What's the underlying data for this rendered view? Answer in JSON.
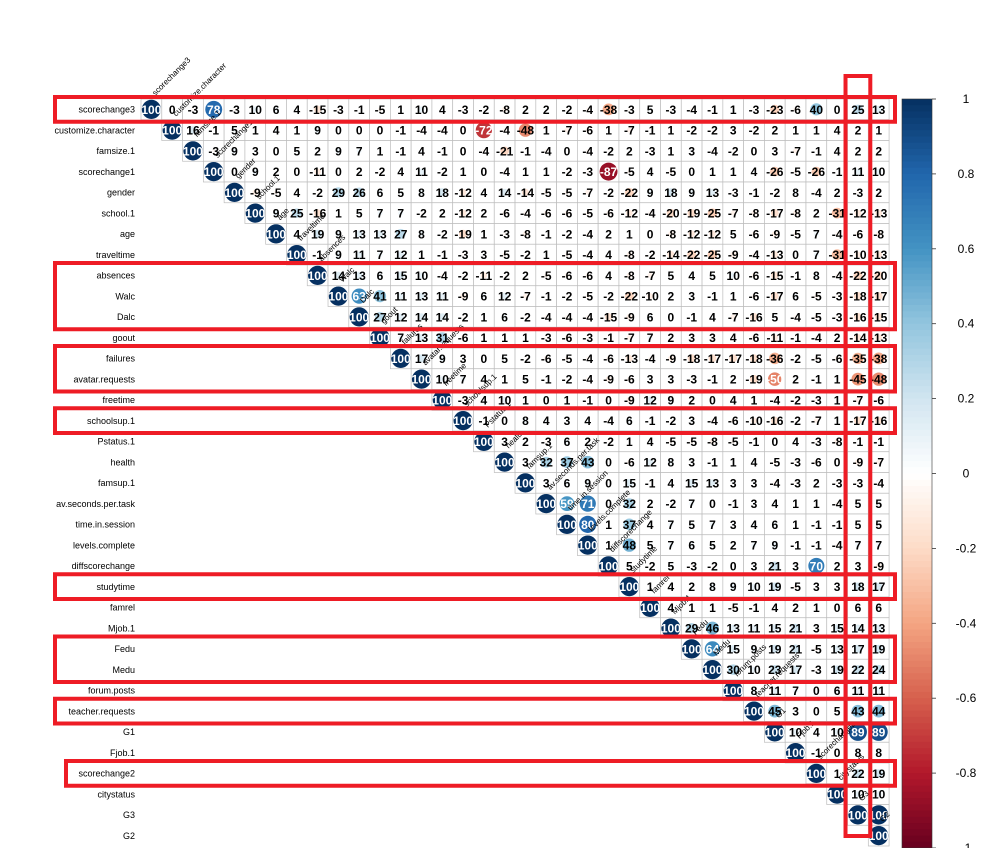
{
  "chart_data": {
    "type": "heatmap",
    "variables": [
      "scorechange3",
      "customize.character",
      "famsize.1",
      "scorechange1",
      "gender",
      "school.1",
      "age",
      "traveltime",
      "absences",
      "Walc",
      "Dalc",
      "goout",
      "failures",
      "avatar.requests",
      "freetime",
      "schoolsup.1",
      "Pstatus.1",
      "health",
      "famsup.1",
      "av.seconds.per.task",
      "time.in.session",
      "levels.complete",
      "diffscorechange",
      "studytime",
      "famrel",
      "Mjob.1",
      "Fedu",
      "Medu",
      "forum.posts",
      "teacher.requests",
      "G1",
      "Fjob.1",
      "scorechange2",
      "citystatus",
      "G3",
      "G2"
    ],
    "values": [
      [
        100,
        0,
        -3,
        78,
        -3,
        10,
        6,
        4,
        -15,
        -3,
        -1,
        -5,
        1,
        10,
        4,
        -3,
        -2,
        -8,
        2,
        2,
        -2,
        -4,
        -38,
        -3,
        5,
        -3,
        -4,
        -1,
        1,
        -3,
        -23,
        -6,
        40,
        0,
        25,
        13
      ],
      [
        null,
        100,
        16,
        -1,
        5,
        1,
        4,
        1,
        9,
        0,
        0,
        0,
        -1,
        -4,
        -4,
        0,
        -72,
        -4,
        -48,
        1,
        -7,
        -6,
        1,
        -7,
        -1,
        1,
        -2,
        -2,
        3,
        -2,
        2,
        1,
        1,
        4,
        2,
        1
      ],
      [
        null,
        null,
        100,
        -3,
        9,
        3,
        0,
        5,
        2,
        9,
        7,
        1,
        -1,
        4,
        -1,
        0,
        -4,
        -21,
        -1,
        -4,
        0,
        -4,
        -2,
        2,
        -3,
        1,
        3,
        -4,
        -2,
        0,
        3,
        -7,
        -1,
        4,
        2,
        2
      ],
      [
        null,
        null,
        null,
        100,
        0,
        9,
        2,
        0,
        -11,
        0,
        2,
        -2,
        4,
        11,
        -2,
        1,
        0,
        -4,
        1,
        1,
        -2,
        -3,
        -87,
        -5,
        4,
        -5,
        0,
        1,
        1,
        4,
        -26,
        -5,
        -26,
        -1,
        11,
        10
      ],
      [
        null,
        null,
        null,
        null,
        100,
        -9,
        -5,
        4,
        -2,
        29,
        26,
        6,
        5,
        8,
        18,
        -12,
        4,
        14,
        -14,
        -5,
        -5,
        -7,
        -2,
        -22,
        9,
        18,
        9,
        13,
        -3,
        -1,
        -2,
        8,
        -4,
        2,
        -3,
        2
      ],
      [
        null,
        null,
        null,
        null,
        null,
        100,
        9,
        25,
        -16,
        1,
        5,
        7,
        7,
        -2,
        2,
        -12,
        2,
        -6,
        -4,
        -6,
        -6,
        -5,
        -6,
        -12,
        -4,
        -20,
        -19,
        -25,
        -7,
        -8,
        -17,
        -8,
        2,
        -31,
        -12,
        -13
      ],
      [
        null,
        null,
        null,
        null,
        null,
        null,
        100,
        4,
        19,
        9,
        13,
        13,
        27,
        8,
        -2,
        -19,
        1,
        -3,
        -8,
        -1,
        -2,
        -4,
        2,
        1,
        0,
        -8,
        -12,
        -12,
        5,
        -6,
        -9,
        -5,
        7,
        -4,
        -6,
        -8
      ],
      [
        null,
        null,
        null,
        null,
        null,
        null,
        null,
        100,
        -1,
        9,
        11,
        7,
        12,
        1,
        -1,
        -3,
        3,
        -5,
        -2,
        1,
        -5,
        -4,
        4,
        -8,
        -2,
        -14,
        -22,
        -25,
        -9,
        -4,
        -13,
        0,
        7,
        -31,
        -10,
        -13
      ],
      [
        null,
        null,
        null,
        null,
        null,
        null,
        null,
        null,
        100,
        14,
        13,
        6,
        15,
        10,
        -4,
        -2,
        -11,
        -2,
        2,
        -5,
        -6,
        -6,
        4,
        -8,
        -7,
        5,
        4,
        5,
        10,
        -6,
        -15,
        -1,
        8,
        -4,
        -22,
        -20
      ],
      [
        null,
        null,
        null,
        null,
        null,
        null,
        null,
        null,
        null,
        100,
        63,
        41,
        11,
        13,
        11,
        -9,
        6,
        12,
        -7,
        -1,
        -2,
        -5,
        -2,
        -22,
        -10,
        2,
        3,
        -1,
        1,
        -6,
        -17,
        6,
        -5,
        -3,
        -18,
        -17
      ],
      [
        null,
        null,
        null,
        null,
        null,
        null,
        null,
        null,
        null,
        null,
        100,
        27,
        12,
        14,
        14,
        -2,
        1,
        6,
        -2,
        -4,
        -4,
        -4,
        -15,
        -9,
        6,
        0,
        -1,
        4,
        -7,
        -16,
        5,
        -4,
        -5,
        -3,
        -16,
        -15
      ],
      [
        null,
        null,
        null,
        null,
        null,
        null,
        null,
        null,
        null,
        null,
        null,
        100,
        7,
        13,
        31,
        -6,
        1,
        1,
        1,
        -3,
        -6,
        -3,
        -1,
        -7,
        7,
        2,
        3,
        3,
        4,
        -6,
        -11,
        -1,
        -4,
        2,
        -14,
        -13
      ],
      [
        null,
        null,
        null,
        null,
        null,
        null,
        null,
        null,
        null,
        null,
        null,
        null,
        100,
        17,
        9,
        3,
        0,
        5,
        -2,
        -6,
        -5,
        -4,
        -6,
        -13,
        -4,
        -9,
        -18,
        -17,
        -17,
        -18,
        -36,
        -2,
        -5,
        -6,
        -35,
        -38
      ],
      [
        null,
        null,
        null,
        null,
        null,
        null,
        null,
        null,
        null,
        null,
        null,
        null,
        null,
        100,
        10,
        7,
        4,
        1,
        5,
        -1,
        -2,
        -4,
        -9,
        -6,
        3,
        3,
        -3,
        -1,
        2,
        -19,
        -50,
        2,
        -1,
        1,
        -45,
        -48
      ],
      [
        null,
        null,
        null,
        null,
        null,
        null,
        null,
        null,
        null,
        null,
        null,
        null,
        null,
        null,
        100,
        -3,
        4,
        10,
        1,
        0,
        1,
        -1,
        0,
        -9,
        12,
        9,
        2,
        0,
        4,
        1,
        -4,
        -2,
        -3,
        1,
        -7,
        -6
      ],
      [
        null,
        null,
        null,
        null,
        null,
        null,
        null,
        null,
        null,
        null,
        null,
        null,
        null,
        null,
        null,
        100,
        -1,
        0,
        8,
        4,
        3,
        4,
        -4,
        6,
        -1,
        -2,
        3,
        -4,
        -6,
        -10,
        -16,
        -2,
        -7,
        1,
        -17,
        -16
      ],
      [
        null,
        null,
        null,
        null,
        null,
        null,
        null,
        null,
        null,
        null,
        null,
        null,
        null,
        null,
        null,
        null,
        100,
        3,
        2,
        -3,
        6,
        2,
        -2,
        1,
        4,
        -5,
        -5,
        -8,
        -5,
        -1,
        0,
        4,
        -3,
        -8,
        -1,
        -1
      ],
      [
        null,
        null,
        null,
        null,
        null,
        null,
        null,
        null,
        null,
        null,
        null,
        null,
        null,
        null,
        null,
        null,
        null,
        100,
        3,
        32,
        37,
        43,
        0,
        -6,
        12,
        8,
        3,
        -1,
        1,
        4,
        -5,
        -3,
        -6,
        0,
        -9,
        -7
      ],
      [
        null,
        null,
        null,
        null,
        null,
        null,
        null,
        null,
        null,
        null,
        null,
        null,
        null,
        null,
        null,
        null,
        null,
        null,
        100,
        3,
        6,
        9,
        0,
        15,
        -1,
        4,
        15,
        13,
        3,
        3,
        -4,
        -3,
        2,
        -3,
        -3,
        -4
      ],
      [
        null,
        null,
        null,
        null,
        null,
        null,
        null,
        null,
        null,
        null,
        null,
        null,
        null,
        null,
        null,
        null,
        null,
        null,
        null,
        100,
        59,
        71,
        0,
        32,
        2,
        -2,
        7,
        0,
        -1,
        3,
        4,
        1,
        1,
        -4,
        5,
        5
      ],
      [
        null,
        null,
        null,
        null,
        null,
        null,
        null,
        null,
        null,
        null,
        null,
        null,
        null,
        null,
        null,
        null,
        null,
        null,
        null,
        null,
        100,
        80,
        1,
        37,
        4,
        7,
        5,
        7,
        3,
        4,
        6,
        1,
        -1,
        -1,
        5,
        5
      ],
      [
        null,
        null,
        null,
        null,
        null,
        null,
        null,
        null,
        null,
        null,
        null,
        null,
        null,
        null,
        null,
        null,
        null,
        null,
        null,
        null,
        null,
        100,
        1,
        48,
        5,
        7,
        6,
        5,
        2,
        7,
        9,
        -1,
        -1,
        -4,
        7,
        7
      ],
      [
        null,
        null,
        null,
        null,
        null,
        null,
        null,
        null,
        null,
        null,
        null,
        null,
        null,
        null,
        null,
        null,
        null,
        null,
        null,
        null,
        null,
        null,
        100,
        5,
        -2,
        5,
        -3,
        -2,
        0,
        3,
        21,
        3,
        70,
        2,
        3,
        -9
      ],
      [
        null,
        null,
        null,
        null,
        null,
        null,
        null,
        null,
        null,
        null,
        null,
        null,
        null,
        null,
        null,
        null,
        null,
        null,
        null,
        null,
        null,
        null,
        null,
        100,
        1,
        4,
        2,
        8,
        9,
        10,
        19,
        -5,
        3,
        3,
        18,
        17
      ],
      [
        null,
        null,
        null,
        null,
        null,
        null,
        null,
        null,
        null,
        null,
        null,
        null,
        null,
        null,
        null,
        null,
        null,
        null,
        null,
        null,
        null,
        null,
        null,
        null,
        100,
        4,
        1,
        1,
        -5,
        -1,
        4,
        2,
        1,
        0,
        6,
        6
      ],
      [
        null,
        null,
        null,
        null,
        null,
        null,
        null,
        null,
        null,
        null,
        null,
        null,
        null,
        null,
        null,
        null,
        null,
        null,
        null,
        null,
        null,
        null,
        null,
        null,
        null,
        100,
        29,
        46,
        13,
        11,
        15,
        21,
        3,
        15,
        14,
        13
      ],
      [
        null,
        null,
        null,
        null,
        null,
        null,
        null,
        null,
        null,
        null,
        null,
        null,
        null,
        null,
        null,
        null,
        null,
        null,
        null,
        null,
        null,
        null,
        null,
        null,
        null,
        null,
        100,
        64,
        15,
        9,
        19,
        21,
        -5,
        13,
        17,
        19
      ],
      [
        null,
        null,
        null,
        null,
        null,
        null,
        null,
        null,
        null,
        null,
        null,
        null,
        null,
        null,
        null,
        null,
        null,
        null,
        null,
        null,
        null,
        null,
        null,
        null,
        null,
        null,
        null,
        100,
        30,
        10,
        23,
        17,
        -3,
        19,
        22,
        24
      ],
      [
        null,
        null,
        null,
        null,
        null,
        null,
        null,
        null,
        null,
        null,
        null,
        null,
        null,
        null,
        null,
        null,
        null,
        null,
        null,
        null,
        null,
        null,
        null,
        null,
        null,
        null,
        null,
        null,
        100,
        8,
        11,
        7,
        0,
        6,
        11,
        11
      ],
      [
        null,
        null,
        null,
        null,
        null,
        null,
        null,
        null,
        null,
        null,
        null,
        null,
        null,
        null,
        null,
        null,
        null,
        null,
        null,
        null,
        null,
        null,
        null,
        null,
        null,
        null,
        null,
        null,
        null,
        100,
        45,
        3,
        0,
        5,
        43,
        44
      ],
      [
        null,
        null,
        null,
        null,
        null,
        null,
        null,
        null,
        null,
        null,
        null,
        null,
        null,
        null,
        null,
        null,
        null,
        null,
        null,
        null,
        null,
        null,
        null,
        null,
        null,
        null,
        null,
        null,
        null,
        null,
        100,
        10,
        4,
        10,
        89,
        89
      ],
      [
        null,
        null,
        null,
        null,
        null,
        null,
        null,
        null,
        null,
        null,
        null,
        null,
        null,
        null,
        null,
        null,
        null,
        null,
        null,
        null,
        null,
        null,
        null,
        null,
        null,
        null,
        null,
        null,
        null,
        null,
        null,
        100,
        -1,
        0,
        8,
        8
      ],
      [
        null,
        null,
        null,
        null,
        null,
        null,
        null,
        null,
        null,
        null,
        null,
        null,
        null,
        null,
        null,
        null,
        null,
        null,
        null,
        null,
        null,
        null,
        null,
        null,
        null,
        null,
        null,
        null,
        null,
        null,
        null,
        null,
        100,
        1,
        22,
        19
      ],
      [
        null,
        null,
        null,
        null,
        null,
        null,
        null,
        null,
        null,
        null,
        null,
        null,
        null,
        null,
        null,
        null,
        null,
        null,
        null,
        null,
        null,
        null,
        null,
        null,
        null,
        null,
        null,
        null,
        null,
        null,
        null,
        null,
        null,
        100,
        10,
        10
      ],
      [
        null,
        null,
        null,
        null,
        null,
        null,
        null,
        null,
        null,
        null,
        null,
        null,
        null,
        null,
        null,
        null,
        null,
        null,
        null,
        null,
        null,
        null,
        null,
        null,
        null,
        null,
        null,
        null,
        null,
        null,
        null,
        null,
        null,
        null,
        100,
        100
      ],
      [
        null,
        null,
        null,
        null,
        null,
        null,
        null,
        null,
        null,
        null,
        null,
        null,
        null,
        null,
        null,
        null,
        null,
        null,
        null,
        null,
        null,
        null,
        null,
        null,
        null,
        null,
        null,
        null,
        null,
        null,
        null,
        null,
        null,
        null,
        null,
        100
      ]
    ],
    "colorbar": {
      "min": -1,
      "max": 1,
      "ticks": [
        "1",
        "0.8",
        "0.6",
        "0.4",
        "0.2",
        "0",
        "-0.2",
        "-0.4",
        "-0.6",
        "-0.8",
        "-1"
      ]
    },
    "color_scale": [
      "#67001F",
      "#B2182B",
      "#D6604D",
      "#F4A582",
      "#FDDBC7",
      "#FFFFFF",
      "#D1E5F0",
      "#92C5DE",
      "#4393C3",
      "#2166AC",
      "#053061"
    ],
    "highlighted_rows": [
      "scorechange3",
      "absences",
      "Walc",
      "Dalc",
      "failures",
      "avatar.requests",
      "schoolsup.1",
      "studytime",
      "Fedu",
      "Medu",
      "teacher.requests",
      "scorechange2"
    ],
    "highlighted_columns": [
      "G3"
    ],
    "highlight_color": "#EE1C25"
  }
}
